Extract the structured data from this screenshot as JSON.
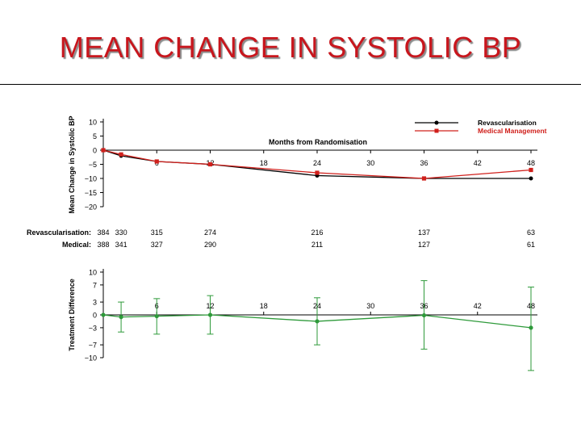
{
  "slide": {
    "title": "MEAN CHANGE IN SYSTOLIC BP"
  },
  "chart_data": [
    {
      "type": "line",
      "ylabel": "Mean Change in Systolic BP",
      "xlabel": "Months from Randomisation",
      "x_ticks": [
        6,
        12,
        18,
        24,
        30,
        36,
        42,
        48
      ],
      "y_ticks": [
        10,
        5,
        0,
        -5,
        -10,
        -15,
        -20
      ],
      "xlim": [
        0,
        48
      ],
      "ylim": [
        -20,
        10
      ],
      "legend": "top-right",
      "series": [
        {
          "name": "Revascularisation",
          "color": "#000000",
          "x": [
            0,
            2,
            6,
            12,
            24,
            36,
            48
          ],
          "values": [
            0,
            -2,
            -4,
            -5,
            -9,
            -10,
            -10
          ]
        },
        {
          "name": "Medical Management",
          "color": "#d0201c",
          "x": [
            0,
            2,
            6,
            12,
            24,
            36,
            48
          ],
          "values": [
            0,
            -1.5,
            -4,
            -5,
            -8,
            -10,
            -7
          ]
        }
      ],
      "at_risk": {
        "x": [
          0,
          2,
          6,
          12,
          24,
          36,
          48
        ],
        "rows": [
          {
            "label": "Revascularisation:",
            "values": [
              "384",
              "330",
              "315",
              "274",
              "216",
              "137",
              "63"
            ]
          },
          {
            "label": "Medical:",
            "values": [
              "388",
              "341",
              "327",
              "290",
              "211",
              "127",
              "61"
            ]
          }
        ]
      }
    },
    {
      "type": "line",
      "ylabel": "Treatment Difference",
      "x_ticks": [
        6,
        12,
        18,
        24,
        30,
        36,
        42,
        48
      ],
      "y_ticks": [
        10,
        7,
        3,
        0,
        -3,
        -7,
        -10
      ],
      "xlim": [
        0,
        48
      ],
      "ylim": [
        -10,
        10
      ],
      "series": [
        {
          "name": "Treatment Difference",
          "color": "#2e9a3a",
          "x": [
            0,
            2,
            6,
            12,
            24,
            36,
            48
          ],
          "values": [
            0,
            -0.5,
            -0.3,
            0,
            -1.5,
            -0.1,
            -3
          ],
          "lower": [
            0,
            -4,
            -4.5,
            -4.5,
            -7,
            -8,
            -13
          ],
          "upper": [
            0,
            3,
            3.8,
            4.5,
            4,
            8,
            6.5
          ]
        }
      ]
    }
  ]
}
